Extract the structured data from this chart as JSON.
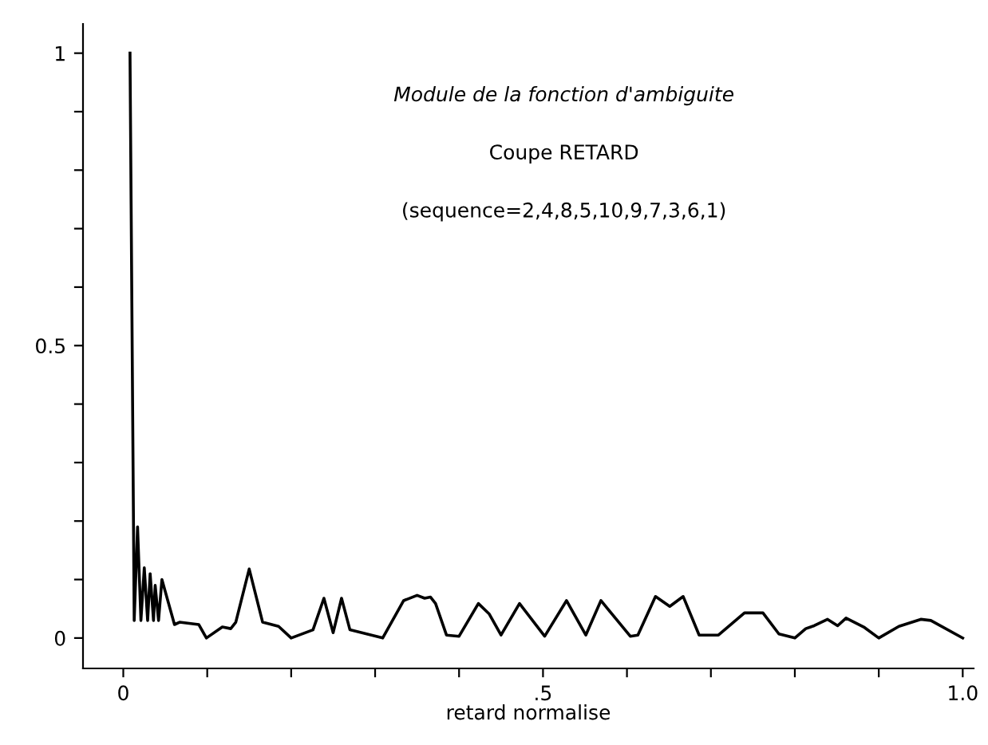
{
  "chart_data": {
    "type": "line",
    "title": "Module de la fonction d'ambiguite",
    "subtitle": "Coupe RETARD",
    "annotations": [
      "(sequence=2,4,8,5,10,9,7,3,6,1)"
    ],
    "xlabel": "retard normalise",
    "series": [
      {
        "color": "#000000",
        "x": [
          0.008,
          0.013,
          0.017,
          0.021,
          0.025,
          0.029,
          0.032,
          0.036,
          0.038,
          0.042,
          0.046,
          0.061,
          0.067,
          0.09,
          0.099,
          0.118,
          0.128,
          0.134,
          0.15,
          0.166,
          0.185,
          0.2,
          0.226,
          0.239,
          0.25,
          0.26,
          0.27,
          0.309,
          0.334,
          0.35,
          0.359,
          0.366,
          0.372,
          0.385,
          0.4,
          0.423,
          0.436,
          0.45,
          0.472,
          0.502,
          0.528,
          0.551,
          0.569,
          0.604,
          0.613,
          0.634,
          0.651,
          0.667,
          0.686,
          0.709,
          0.74,
          0.762,
          0.781,
          0.8,
          0.813,
          0.823,
          0.839,
          0.851,
          0.861,
          0.883,
          0.9,
          0.924,
          0.95,
          0.962,
          1.0
        ],
        "values": [
          1,
          0.03,
          0.19,
          0.03,
          0.12,
          0.03,
          0.11,
          0.03,
          0.09,
          0.03,
          0.1,
          0.023,
          0.027,
          0.023,
          0,
          0.019,
          0.016,
          0.027,
          0.118,
          0.027,
          0.02,
          0,
          0.014,
          0.068,
          0.009,
          0.068,
          0.014,
          0,
          0.064,
          0.073,
          0.068,
          0.07,
          0.059,
          0.005,
          0.003,
          0.059,
          0.041,
          0.005,
          0.059,
          0.003,
          0.064,
          0.005,
          0.064,
          0.003,
          0.005,
          0.071,
          0.054,
          0.071,
          0.005,
          0.005,
          0.043,
          0.043,
          0.007,
          0,
          0.016,
          0.021,
          0.032,
          0.021,
          0.034,
          0.018,
          0,
          0.02,
          0.032,
          0.03,
          0
        ]
      }
    ],
    "xlim": [
      -0.048,
      1.013
    ],
    "ylim": [
      -0.052,
      1.05
    ],
    "xticks": [
      0,
      {
        "value": 0.1,
        "label": null
      },
      {
        "value": 0.2,
        "label": null
      },
      {
        "value": 0.3,
        "label": null
      },
      {
        "value": 0.4,
        "label": null
      },
      {
        "value": 0.5,
        "label": ".5"
      },
      {
        "value": 0.6,
        "label": null
      },
      {
        "value": 0.7,
        "label": null
      },
      {
        "value": 0.8,
        "label": null
      },
      {
        "value": 0.9,
        "label": null
      },
      {
        "value": 1,
        "label": "1.0"
      }
    ],
    "yticks": [
      0,
      {
        "value": 0.1,
        "label": null
      },
      {
        "value": 0.2,
        "label": null
      },
      {
        "value": 0.3,
        "label": null
      },
      {
        "value": 0.4,
        "label": null
      },
      0.5,
      {
        "value": 0.6,
        "label": null
      },
      {
        "value": 0.7,
        "label": null
      },
      {
        "value": 0.8,
        "label": null
      },
      {
        "value": 0.9,
        "label": null
      },
      1
    ],
    "grid": false,
    "marker": "none",
    "line_style": "solid"
  }
}
